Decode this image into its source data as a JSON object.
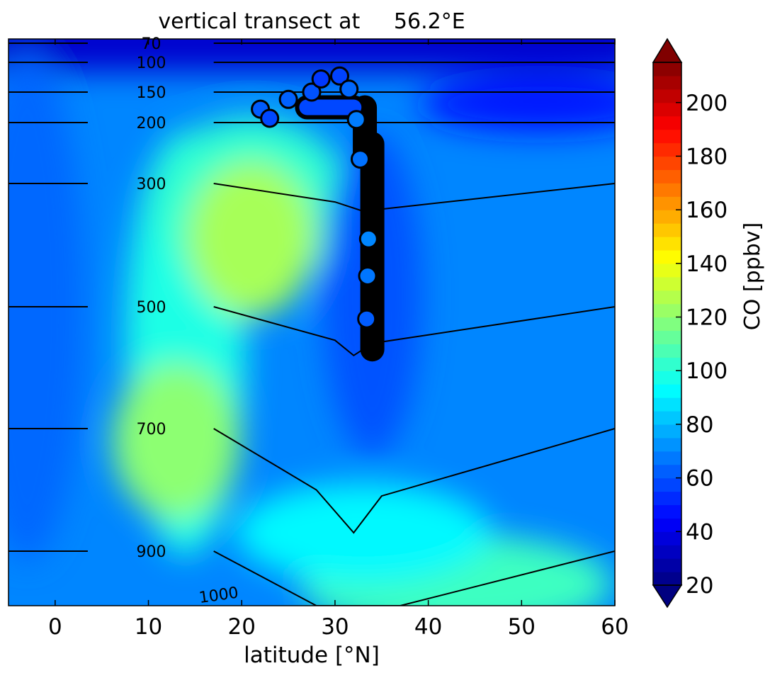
{
  "chart_data": {
    "type": "heatmap",
    "title": "vertical transect at     56.2°E",
    "xlabel": "latitude [°N]",
    "x_ticks": [
      "0",
      "10",
      "20",
      "30",
      "40",
      "50",
      "60"
    ],
    "x_tick_values": [
      0,
      10,
      20,
      30,
      40,
      50,
      60
    ],
    "xlim": [
      -5,
      60
    ],
    "y_axis": "pressure [hPa], inverted, log-like scale, no tick labels",
    "ylim": [
      1000,
      65
    ],
    "colorbar": {
      "label": "CO [ppbv]",
      "ticks": [
        "20",
        "40",
        "60",
        "80",
        "100",
        "120",
        "140",
        "160",
        "180",
        "200"
      ],
      "tick_values": [
        20,
        40,
        60,
        80,
        100,
        120,
        140,
        160,
        180,
        200
      ],
      "range": [
        20,
        215
      ],
      "colormap": "jet",
      "extend": "both"
    },
    "contours": {
      "quantity": "pressure isobars [hPa]",
      "levels": [
        {
          "label": "70",
          "value": 70
        },
        {
          "label": "100",
          "value": 100
        },
        {
          "label": "150",
          "value": 150
        },
        {
          "label": "200",
          "value": 200
        },
        {
          "label": "300",
          "value": 300
        },
        {
          "label": "500",
          "value": 500
        },
        {
          "label": "700",
          "value": 700
        },
        {
          "label": "900",
          "value": 900
        },
        {
          "label": "1000",
          "value": 1000
        }
      ]
    },
    "field_description": {
      "background_ppbv": 70,
      "maxima": [
        {
          "lat": 21,
          "p": 390,
          "co": 125
        },
        {
          "lat": 13,
          "p": 720,
          "co": 120
        },
        {
          "lat": 43,
          "p": 960,
          "co": 105
        }
      ],
      "upper_levels_ppbv": 35,
      "blue_tongue_ppbv": 60
    },
    "flight_track": {
      "description": "aircraft CO observations along the transect",
      "segments": [
        {
          "lat": 34.0,
          "p_top": 235,
          "p_bottom": 570,
          "co": 60,
          "role": "descent"
        },
        {
          "lat": 33.2,
          "p_top": 175,
          "p_bottom": 250,
          "co": 62,
          "role": "descent-upper"
        },
        {
          "lat": 27.0,
          "p": 175,
          "lat_to": 32.0,
          "co": 58,
          "role": "level"
        }
      ],
      "points": [
        {
          "lat": 22.0,
          "p": 178,
          "co": 62
        },
        {
          "lat": 23.0,
          "p": 193,
          "co": 58
        },
        {
          "lat": 25.0,
          "p": 162,
          "co": 63
        },
        {
          "lat": 27.5,
          "p": 150,
          "co": 60
        },
        {
          "lat": 28.5,
          "p": 128,
          "co": 55
        },
        {
          "lat": 30.5,
          "p": 123,
          "co": 57
        },
        {
          "lat": 31.5,
          "p": 145,
          "co": 64
        },
        {
          "lat": 32.3,
          "p": 195,
          "co": 68
        },
        {
          "lat": 32.7,
          "p": 260,
          "co": 66
        },
        {
          "lat": 33.6,
          "p": 390,
          "co": 70
        },
        {
          "lat": 33.5,
          "p": 450,
          "co": 67
        },
        {
          "lat": 33.4,
          "p": 520,
          "co": 62
        }
      ]
    }
  }
}
